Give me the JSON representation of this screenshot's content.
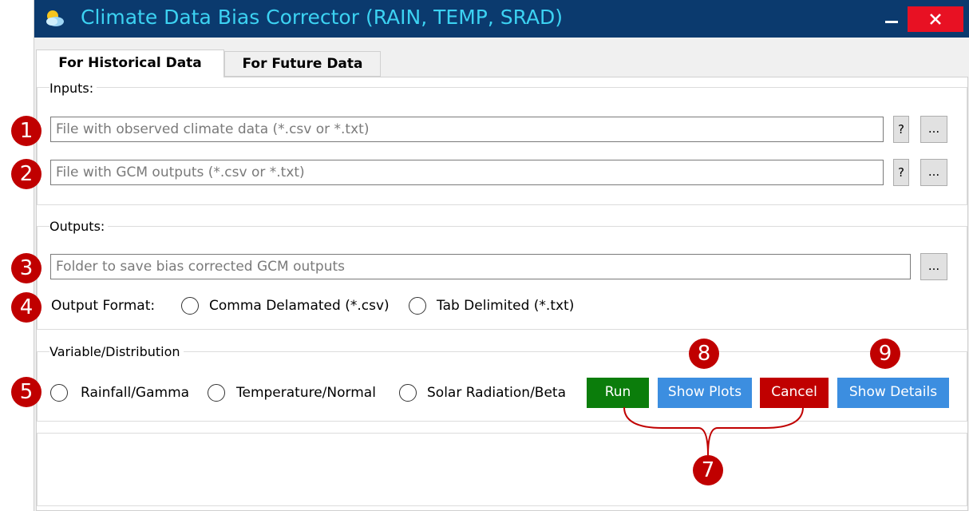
{
  "window": {
    "title": "Climate Data Bias Corrector (RAIN, TEMP, SRAD)",
    "title_color": "#3cd2f2",
    "titlebar_color": "#0b3a6e",
    "close_color": "#e81123"
  },
  "tabs": [
    {
      "label": "For Historical Data",
      "active": true
    },
    {
      "label": "For Future Data",
      "active": false
    }
  ],
  "inputs": {
    "group_label": "Inputs:",
    "observed_placeholder": "File with observed climate data (*.csv or *.txt)",
    "gcm_placeholder": "File with GCM outputs (*.csv or *.txt)",
    "help_label": "?",
    "browse_label": "..."
  },
  "outputs": {
    "group_label": "Outputs:",
    "folder_placeholder": "Folder to save bias corrected GCM outputs",
    "browse_label": "...",
    "format_label": "Output Format:",
    "format_options": [
      "Comma Delamated (*.csv)",
      "Tab Delimited (*.txt)"
    ]
  },
  "variable": {
    "group_label": "Variable/Distribution",
    "options": [
      "Rainfall/Gamma",
      "Temperature/Normal",
      "Solar Radiation/Beta"
    ]
  },
  "actions": {
    "run": "Run",
    "show_plots": "Show Plots",
    "cancel": "Cancel",
    "show_details": "Show Details",
    "colors": {
      "run": "#0b7d0b",
      "show_plots": "#3c8ee0",
      "cancel": "#c00000",
      "show_details": "#3c8ee0"
    }
  },
  "progress": {
    "value": 0
  },
  "markers": [
    "1",
    "2",
    "3",
    "4",
    "5",
    "7",
    "8",
    "9"
  ],
  "marker_color": "#c00000"
}
